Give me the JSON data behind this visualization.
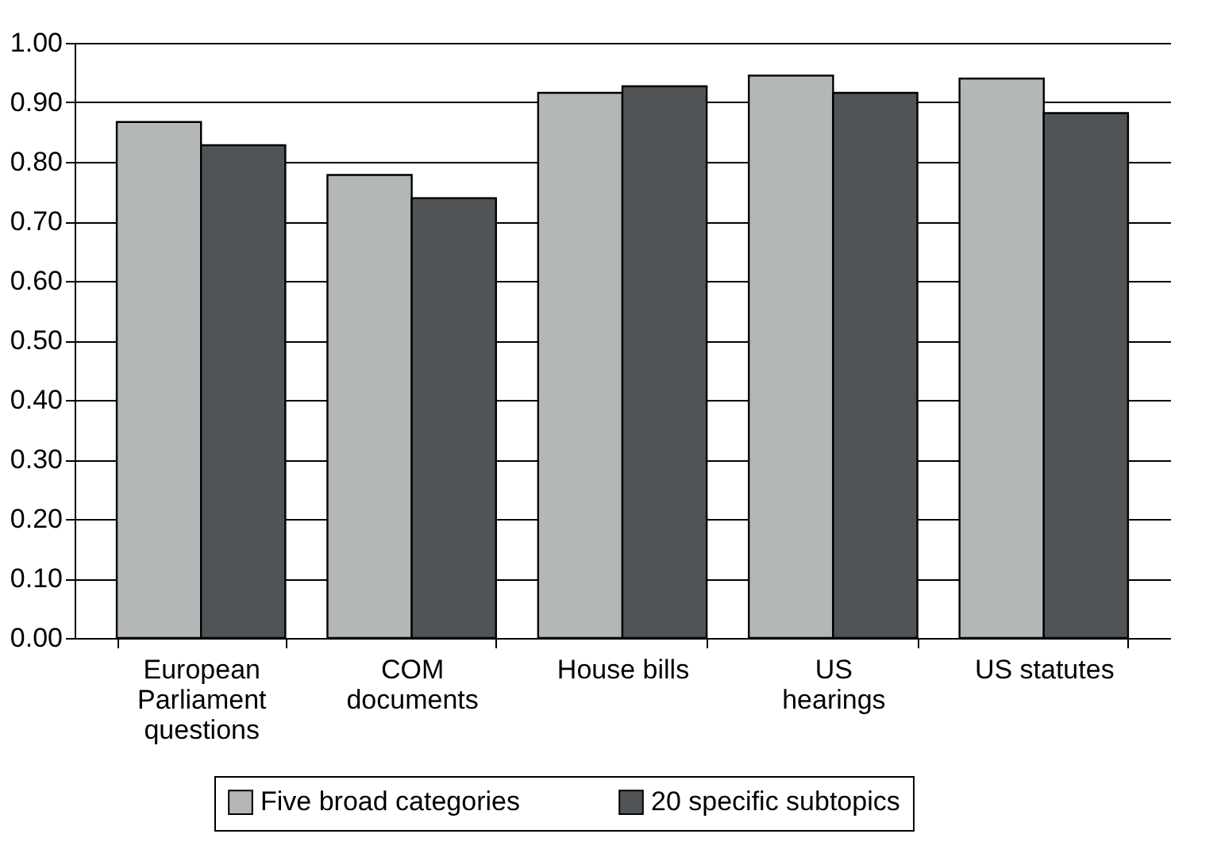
{
  "chart_data": {
    "type": "bar",
    "categories": [
      "European\nParliament\nquestions",
      "COM\ndocuments",
      "House bills",
      "US\nhearings",
      "US statutes"
    ],
    "series": [
      {
        "name": "Five broad categories",
        "color": "#b4b7b7",
        "values": [
          0.867,
          0.778,
          0.916,
          0.945,
          0.94
        ]
      },
      {
        "name": "20 specific subtopics",
        "color": "#505456",
        "values": [
          0.828,
          0.739,
          0.927,
          0.916,
          0.882
        ]
      }
    ],
    "ylim": [
      0,
      1
    ],
    "yticks": [
      {
        "value": 0,
        "label": "0.00"
      },
      {
        "value": 0.1,
        "label": "0.10"
      },
      {
        "value": 0.2,
        "label": "0.20"
      },
      {
        "value": 0.3,
        "label": "0.30"
      },
      {
        "value": 0.4,
        "label": "0.40"
      },
      {
        "value": 0.5,
        "label": "0.50"
      },
      {
        "value": 0.6,
        "label": "0.60"
      },
      {
        "value": 0.7,
        "label": "0.70"
      },
      {
        "value": 0.8,
        "label": "0.80"
      },
      {
        "value": 0.9,
        "label": "0.90"
      },
      {
        "value": 1,
        "label": "1.00"
      }
    ],
    "grid": "y",
    "legend": "bottom"
  }
}
